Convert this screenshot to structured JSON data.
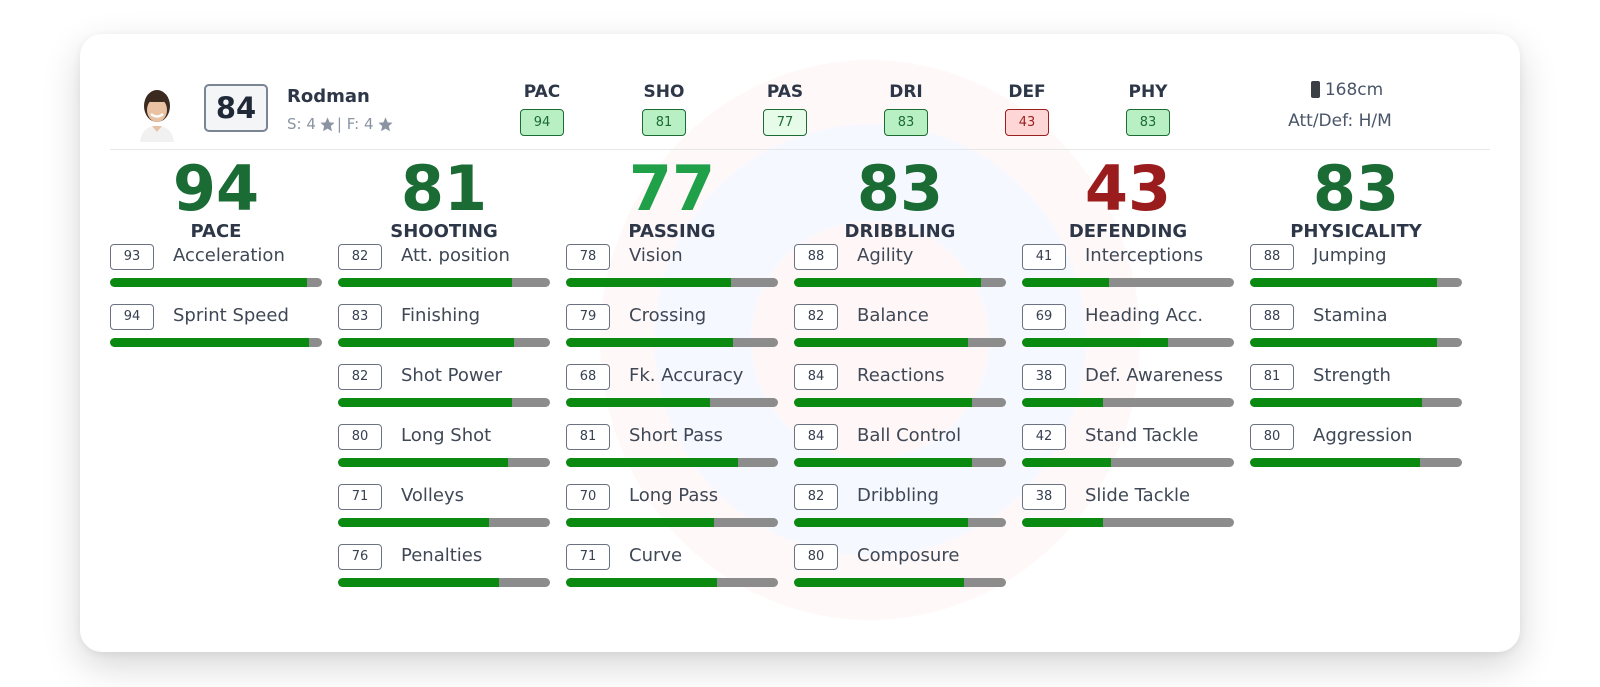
{
  "player": {
    "name": "Rodman",
    "overall": "84",
    "skills_label": "S: 4",
    "weak_foot_label": "| F: 4",
    "height": "168cm",
    "work_rates": "Att/Def: H/M"
  },
  "header_stats": [
    {
      "label": "PAC",
      "value": "94",
      "tone": "strong"
    },
    {
      "label": "SHO",
      "value": "81",
      "tone": "strong"
    },
    {
      "label": "PAS",
      "value": "77",
      "tone": "light"
    },
    {
      "label": "DRI",
      "value": "83",
      "tone": "strong"
    },
    {
      "label": "DEF",
      "value": "43",
      "tone": "red"
    },
    {
      "label": "PHY",
      "value": "83",
      "tone": "strong"
    }
  ],
  "colors": {
    "big_dark_green": "#1a6b34",
    "big_bright_green": "#21a04a",
    "big_red": "#9b1c1c",
    "bar_fill": "#0a8a10",
    "bar_track": "#8c8c8c"
  },
  "categories": [
    {
      "value": "94",
      "name": "PACE",
      "color": "#1a6b34",
      "attributes": [
        {
          "value": "93",
          "name": "Acceleration"
        },
        {
          "value": "94",
          "name": "Sprint Speed"
        }
      ]
    },
    {
      "value": "81",
      "name": "SHOOTING",
      "color": "#1a6b34",
      "attributes": [
        {
          "value": "82",
          "name": "Att. position"
        },
        {
          "value": "83",
          "name": "Finishing"
        },
        {
          "value": "82",
          "name": "Shot Power"
        },
        {
          "value": "80",
          "name": "Long Shot"
        },
        {
          "value": "71",
          "name": "Volleys"
        },
        {
          "value": "76",
          "name": "Penalties"
        }
      ]
    },
    {
      "value": "77",
      "name": "PASSING",
      "color": "#21a04a",
      "attributes": [
        {
          "value": "78",
          "name": "Vision"
        },
        {
          "value": "79",
          "name": "Crossing"
        },
        {
          "value": "68",
          "name": "Fk. Accuracy"
        },
        {
          "value": "81",
          "name": "Short Pass"
        },
        {
          "value": "70",
          "name": "Long Pass"
        },
        {
          "value": "71",
          "name": "Curve"
        }
      ]
    },
    {
      "value": "83",
      "name": "DRIBBLING",
      "color": "#1a6b34",
      "attributes": [
        {
          "value": "88",
          "name": "Agility"
        },
        {
          "value": "82",
          "name": "Balance"
        },
        {
          "value": "84",
          "name": "Reactions"
        },
        {
          "value": "84",
          "name": "Ball Control"
        },
        {
          "value": "82",
          "name": "Dribbling"
        },
        {
          "value": "80",
          "name": "Composure"
        }
      ]
    },
    {
      "value": "43",
      "name": "DEFENDING",
      "color": "#9b1c1c",
      "attributes": [
        {
          "value": "41",
          "name": "Interceptions"
        },
        {
          "value": "69",
          "name": "Heading Acc."
        },
        {
          "value": "38",
          "name": "Def. Awareness"
        },
        {
          "value": "42",
          "name": "Stand Tackle"
        },
        {
          "value": "38",
          "name": "Slide Tackle"
        }
      ]
    },
    {
      "value": "83",
      "name": "PHYSICALITY",
      "color": "#1a6b34",
      "attributes": [
        {
          "value": "88",
          "name": "Jumping"
        },
        {
          "value": "88",
          "name": "Stamina"
        },
        {
          "value": "81",
          "name": "Strength"
        },
        {
          "value": "80",
          "name": "Aggression"
        }
      ]
    }
  ]
}
